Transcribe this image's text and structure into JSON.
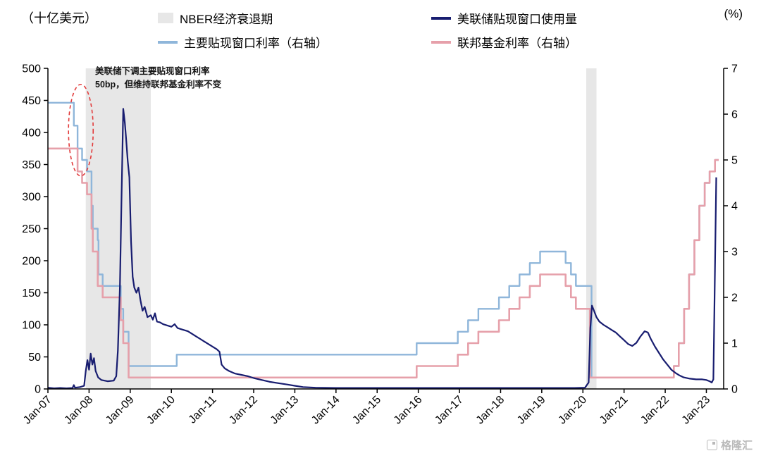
{
  "page": {
    "left_axis_title": "（十亿美元）",
    "right_axis_title": "(%)"
  },
  "legend": {
    "items": [
      {
        "label": "NBER经济衰退期",
        "swatch": "band",
        "color": "#e7e7e7"
      },
      {
        "label": "美联储贴现窗口使用量",
        "swatch": "line",
        "color": "#181d70"
      },
      {
        "label": "主要贴现窗口利率（右轴）",
        "swatch": "line",
        "color": "#8fb6da"
      },
      {
        "label": "联邦基金利率（右轴）",
        "swatch": "line",
        "color": "#e6a0aa"
      }
    ]
  },
  "annotation": {
    "line1": "美联储下调主要贴现窗口利率",
    "line2": "50bp，但维持联邦基金利率不变"
  },
  "watermark": "格隆汇",
  "chart_data": {
    "type": "line",
    "x_range": [
      2007.0,
      2023.42
    ],
    "x_ticks": [
      2007,
      2008,
      2009,
      2010,
      2011,
      2012,
      2013,
      2014,
      2015,
      2016,
      2017,
      2018,
      2019,
      2020,
      2021,
      2022,
      2023
    ],
    "x_tick_labels": [
      "Jan-07",
      "Jan-08",
      "Jan-09",
      "Jan-10",
      "Jan-11",
      "Jan-12",
      "Jan-13",
      "Jan-14",
      "Jan-15",
      "Jan-16",
      "Jan-17",
      "Jan-18",
      "Jan-19",
      "Jan-20",
      "Jan-21",
      "Jan-22",
      "Jan-23"
    ],
    "left_axis": {
      "label": "（十亿美元）",
      "min": 0,
      "max": 500,
      "ticks": [
        0,
        50,
        100,
        150,
        200,
        250,
        300,
        350,
        400,
        450,
        500
      ]
    },
    "right_axis": {
      "label": "(%)",
      "min": 0,
      "max": 7,
      "ticks": [
        0,
        1,
        2,
        3,
        4,
        5,
        6,
        7
      ]
    },
    "recession_bands": [
      [
        2007.92,
        2009.5
      ],
      [
        2020.08,
        2020.33
      ]
    ],
    "band_color": "#e7e7e7",
    "annotation_ellipse": {
      "cx": 2007.8,
      "cy": 5.65,
      "rx": 0.3,
      "ry": 1.0,
      "color": "#e23b3b"
    },
    "series": [
      {
        "id": "primary-discount-rate",
        "name": "主要贴现窗口利率（右轴）",
        "axis": "right",
        "type": "step",
        "color": "#8fb6da",
        "width": 2.4,
        "end_x": 2023.3,
        "points": [
          [
            2007.0,
            6.25
          ],
          [
            2007.63,
            5.75
          ],
          [
            2007.72,
            5.25
          ],
          [
            2007.83,
            5.0
          ],
          [
            2007.95,
            4.75
          ],
          [
            2008.06,
            4.0
          ],
          [
            2008.09,
            3.5
          ],
          [
            2008.21,
            3.25
          ],
          [
            2008.23,
            2.5
          ],
          [
            2008.33,
            2.25
          ],
          [
            2008.77,
            1.75
          ],
          [
            2008.83,
            1.25
          ],
          [
            2008.96,
            0.5
          ],
          [
            2010.13,
            0.75
          ],
          [
            2015.96,
            1.0
          ],
          [
            2016.96,
            1.25
          ],
          [
            2017.21,
            1.5
          ],
          [
            2017.46,
            1.75
          ],
          [
            2017.96,
            2.0
          ],
          [
            2018.21,
            2.25
          ],
          [
            2018.46,
            2.5
          ],
          [
            2018.71,
            2.75
          ],
          [
            2018.96,
            3.0
          ],
          [
            2019.58,
            2.75
          ],
          [
            2019.71,
            2.5
          ],
          [
            2019.83,
            2.25
          ],
          [
            2020.21,
            0.25
          ],
          [
            2022.21,
            0.5
          ],
          [
            2022.33,
            1.0
          ],
          [
            2022.46,
            1.75
          ],
          [
            2022.58,
            2.5
          ],
          [
            2022.71,
            3.25
          ],
          [
            2022.83,
            4.0
          ],
          [
            2022.96,
            4.5
          ],
          [
            2023.08,
            4.75
          ],
          [
            2023.21,
            5.0
          ]
        ]
      },
      {
        "id": "fed-funds-rate",
        "name": "联邦基金利率（右轴）",
        "axis": "right",
        "type": "step",
        "color": "#e6a0aa",
        "width": 2.6,
        "end_x": 2023.3,
        "points": [
          [
            2007.0,
            5.25
          ],
          [
            2007.72,
            4.75
          ],
          [
            2007.83,
            4.5
          ],
          [
            2007.95,
            4.25
          ],
          [
            2008.06,
            3.5
          ],
          [
            2008.09,
            3.0
          ],
          [
            2008.21,
            2.25
          ],
          [
            2008.33,
            2.0
          ],
          [
            2008.77,
            1.5
          ],
          [
            2008.83,
            1.0
          ],
          [
            2008.96,
            0.25
          ],
          [
            2015.96,
            0.5
          ],
          [
            2016.96,
            0.75
          ],
          [
            2017.21,
            1.0
          ],
          [
            2017.46,
            1.25
          ],
          [
            2017.96,
            1.5
          ],
          [
            2018.21,
            1.75
          ],
          [
            2018.46,
            2.0
          ],
          [
            2018.71,
            2.25
          ],
          [
            2018.96,
            2.5
          ],
          [
            2019.58,
            2.25
          ],
          [
            2019.71,
            2.0
          ],
          [
            2019.83,
            1.75
          ],
          [
            2020.17,
            0.25
          ],
          [
            2022.21,
            0.5
          ],
          [
            2022.33,
            1.0
          ],
          [
            2022.46,
            1.75
          ],
          [
            2022.58,
            2.5
          ],
          [
            2022.71,
            3.25
          ],
          [
            2022.83,
            4.0
          ],
          [
            2022.96,
            4.5
          ],
          [
            2023.08,
            4.75
          ],
          [
            2023.21,
            5.0
          ]
        ]
      },
      {
        "id": "discount-window-usage",
        "name": "美联储贴现窗口使用量",
        "axis": "left",
        "type": "line",
        "color": "#181d70",
        "width": 2.2,
        "points": [
          [
            2007.0,
            2
          ],
          [
            2007.15,
            1
          ],
          [
            2007.3,
            1.5
          ],
          [
            2007.45,
            1
          ],
          [
            2007.6,
            1.5
          ],
          [
            2007.63,
            6
          ],
          [
            2007.66,
            2
          ],
          [
            2007.78,
            3
          ],
          [
            2007.88,
            5
          ],
          [
            2007.92,
            28
          ],
          [
            2007.96,
            45
          ],
          [
            2008.0,
            30
          ],
          [
            2008.04,
            55
          ],
          [
            2008.08,
            38
          ],
          [
            2008.12,
            48
          ],
          [
            2008.16,
            28
          ],
          [
            2008.22,
            18
          ],
          [
            2008.3,
            14
          ],
          [
            2008.45,
            12
          ],
          [
            2008.6,
            13
          ],
          [
            2008.66,
            20
          ],
          [
            2008.7,
            60
          ],
          [
            2008.75,
            160
          ],
          [
            2008.79,
            300
          ],
          [
            2008.83,
            437
          ],
          [
            2008.87,
            415
          ],
          [
            2008.9,
            390
          ],
          [
            2008.94,
            355
          ],
          [
            2008.98,
            330
          ],
          [
            2009.02,
            230
          ],
          [
            2009.06,
            175
          ],
          [
            2009.1,
            158
          ],
          [
            2009.15,
            150
          ],
          [
            2009.2,
            158
          ],
          [
            2009.25,
            138
          ],
          [
            2009.3,
            122
          ],
          [
            2009.35,
            128
          ],
          [
            2009.42,
            112
          ],
          [
            2009.5,
            115
          ],
          [
            2009.55,
            108
          ],
          [
            2009.6,
            118
          ],
          [
            2009.65,
            105
          ],
          [
            2009.72,
            104
          ],
          [
            2009.8,
            101
          ],
          [
            2009.9,
            99
          ],
          [
            2010.0,
            97
          ],
          [
            2010.08,
            101
          ],
          [
            2010.15,
            95
          ],
          [
            2010.25,
            93
          ],
          [
            2010.4,
            90
          ],
          [
            2010.5,
            86
          ],
          [
            2010.6,
            82
          ],
          [
            2010.7,
            78
          ],
          [
            2010.8,
            74
          ],
          [
            2010.9,
            70
          ],
          [
            2011.0,
            66
          ],
          [
            2011.1,
            62
          ],
          [
            2011.17,
            58
          ],
          [
            2011.22,
            38
          ],
          [
            2011.3,
            32
          ],
          [
            2011.4,
            28
          ],
          [
            2011.55,
            24
          ],
          [
            2011.7,
            22
          ],
          [
            2011.85,
            20
          ],
          [
            2012.0,
            17
          ],
          [
            2012.2,
            14
          ],
          [
            2012.4,
            11
          ],
          [
            2012.6,
            9
          ],
          [
            2012.8,
            7
          ],
          [
            2013.0,
            5
          ],
          [
            2013.2,
            3
          ],
          [
            2013.5,
            2
          ],
          [
            2014.0,
            1.5
          ],
          [
            2015.0,
            1.5
          ],
          [
            2016.0,
            1.5
          ],
          [
            2017.0,
            1.5
          ],
          [
            2018.0,
            1.5
          ],
          [
            2019.0,
            1.5
          ],
          [
            2019.8,
            1.5
          ],
          [
            2020.05,
            2
          ],
          [
            2020.14,
            10
          ],
          [
            2020.18,
            95
          ],
          [
            2020.22,
            130
          ],
          [
            2020.27,
            122
          ],
          [
            2020.33,
            112
          ],
          [
            2020.4,
            105
          ],
          [
            2020.5,
            100
          ],
          [
            2020.6,
            96
          ],
          [
            2020.7,
            92
          ],
          [
            2020.8,
            88
          ],
          [
            2020.9,
            82
          ],
          [
            2021.0,
            76
          ],
          [
            2021.1,
            70
          ],
          [
            2021.2,
            67
          ],
          [
            2021.3,
            72
          ],
          [
            2021.4,
            82
          ],
          [
            2021.5,
            90
          ],
          [
            2021.58,
            88
          ],
          [
            2021.65,
            78
          ],
          [
            2021.75,
            66
          ],
          [
            2021.85,
            56
          ],
          [
            2021.95,
            46
          ],
          [
            2022.05,
            38
          ],
          [
            2022.15,
            30
          ],
          [
            2022.25,
            25
          ],
          [
            2022.35,
            21
          ],
          [
            2022.45,
            18
          ],
          [
            2022.6,
            16
          ],
          [
            2022.75,
            15
          ],
          [
            2022.9,
            15
          ],
          [
            2023.0,
            14
          ],
          [
            2023.08,
            12
          ],
          [
            2023.13,
            10
          ],
          [
            2023.17,
            15
          ],
          [
            2023.2,
            150
          ],
          [
            2023.24,
            330
          ]
        ]
      }
    ]
  }
}
